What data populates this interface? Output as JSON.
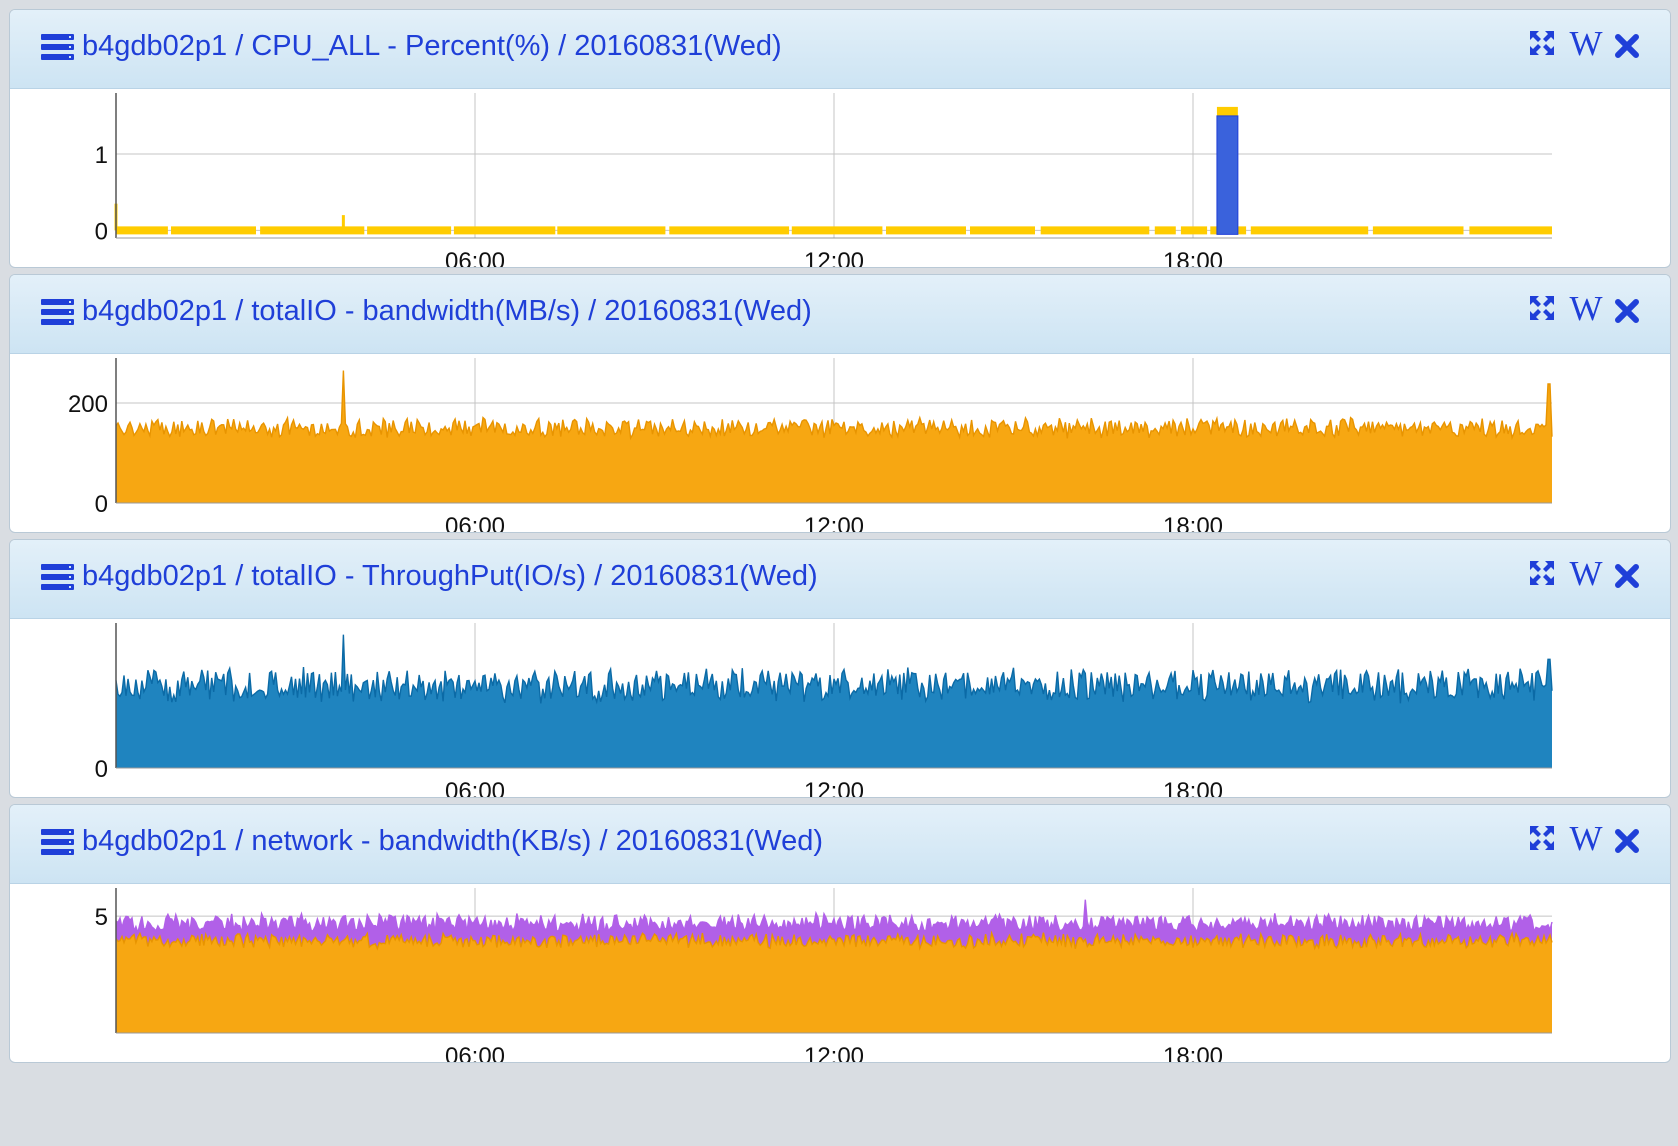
{
  "colors": {
    "title": "#1f3fd8",
    "orange": "#f7a712",
    "orange_line": "#e89400",
    "yellow": "#ffcc00",
    "blue_spike": "#3a62dc",
    "steel_blue": "#1f84bf",
    "steel_line": "#0b6aa6",
    "purple": "#b160e8"
  },
  "controls": {
    "expand_icon": "expand-icon",
    "wiki_label": "W",
    "close_icon": "close-icon"
  },
  "panels": [
    {
      "title": "b4gdb02p1 / CPU_ALL - Percent(%) / 20160831(Wed)",
      "chart_data": {
        "type": "area",
        "x_ticks": [
          "06:00",
          "12:00",
          "18:00"
        ],
        "y_ticks": [
          "0",
          "1"
        ],
        "xlim_hours": [
          0,
          24
        ],
        "ylim": [
          -0.1,
          1.8
        ],
        "grid": true,
        "series": [
          {
            "color_key": "yellow",
            "kind": "baseline",
            "baseline_value": 0,
            "spikes": [
              {
                "hour": 3.8,
                "value": 0.2
              },
              {
                "hour": 0.0,
                "value": 0.35
              }
            ]
          },
          {
            "color_key": "blue_spike",
            "kind": "block",
            "start_hour": 18.4,
            "end_hour": 18.75,
            "value": 1.5
          }
        ]
      }
    },
    {
      "title": "b4gdb02p1 / totalIO - bandwidth(MB/s) / 20160831(Wed)",
      "chart_data": {
        "type": "area",
        "x_ticks": [
          "06:00",
          "12:00",
          "18:00"
        ],
        "y_ticks": [
          "0",
          "200"
        ],
        "xlim_hours": [
          0,
          24
        ],
        "ylim": [
          0,
          290
        ],
        "grid": true,
        "series": [
          {
            "color_key": "orange",
            "kind": "noise",
            "mean": 150,
            "amplitude": 22,
            "spikes": [
              {
                "hour": 3.8,
                "value": 265
              },
              {
                "hour": 23.95,
                "value": 238
              }
            ]
          }
        ]
      }
    },
    {
      "title": "b4gdb02p1 / totalIO - ThroughPut(IO/s) / 20160831(Wed)",
      "chart_data": {
        "type": "area",
        "x_ticks": [
          "06:00",
          "12:00",
          "18:00"
        ],
        "y_ticks": [
          "0"
        ],
        "xlim_hours": [
          0,
          24
        ],
        "ylim": [
          0,
          100
        ],
        "grid": true,
        "series": [
          {
            "color_key": "steel_blue",
            "kind": "noise",
            "mean": 57,
            "amplitude": 13,
            "spikes": [
              {
                "hour": 3.8,
                "value": 92
              },
              {
                "hour": 23.95,
                "value": 75
              }
            ]
          }
        ]
      }
    },
    {
      "title": "b4gdb02p1 / network - bandwidth(KB/s) / 20160831(Wed)",
      "chart_data": {
        "type": "area",
        "x_ticks": [
          "06:00",
          "12:00",
          "18:00"
        ],
        "y_ticks": [
          "5"
        ],
        "xlim_hours": [
          0,
          24
        ],
        "ylim": [
          0,
          6.2
        ],
        "grid": true,
        "series": [
          {
            "color_key": "purple",
            "kind": "noise",
            "mean": 4.7,
            "amplitude": 0.45,
            "spikes": [
              {
                "hour": 16.2,
                "value": 5.7
              }
            ]
          },
          {
            "color_key": "orange",
            "kind": "noise",
            "mean": 3.95,
            "amplitude": 0.35,
            "spikes": []
          }
        ]
      }
    }
  ]
}
